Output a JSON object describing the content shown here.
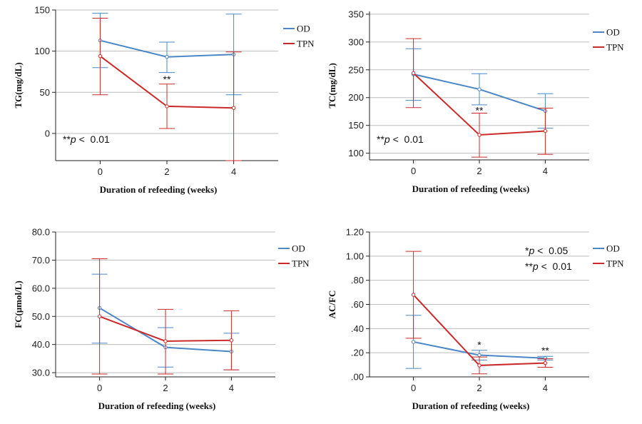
{
  "colors": {
    "OD": "#4a86c8",
    "TPN": "#cc2a2a"
  },
  "chart_data": [
    {
      "type": "line",
      "x": [
        "0",
        "2",
        "4"
      ],
      "xlabel": "Duration of refeeding (weeks)",
      "ylabel": "TG(mg/dL)",
      "ylim": [
        -33,
        150
      ],
      "yticks": [
        0,
        50,
        100,
        150
      ],
      "ytick_labels": [
        "0",
        "50",
        "100",
        "150"
      ],
      "grid": true,
      "legend": [
        "OD",
        "TPN"
      ],
      "legend_position": "top-right",
      "series": [
        {
          "name": "OD",
          "values": [
            113,
            93,
            96
          ],
          "err_low": [
            80,
            74,
            47
          ],
          "err_high": [
            146,
            111,
            145
          ]
        },
        {
          "name": "TPN",
          "values": [
            94,
            33,
            31
          ],
          "err_low": [
            47,
            6,
            -38
          ],
          "err_high": [
            140,
            60,
            99
          ]
        }
      ],
      "significance": [
        {
          "x": "2",
          "y": 66,
          "label": "**"
        }
      ],
      "note": "**p <  0.01"
    },
    {
      "type": "line",
      "x": [
        "0",
        "2",
        "4"
      ],
      "xlabel": "Duration of refeeding (weeks)",
      "ylabel": "TC(mg/dL)",
      "ylim": [
        88,
        355
      ],
      "yticks": [
        100,
        150,
        200,
        250,
        300,
        350
      ],
      "ytick_labels": [
        "100",
        "150",
        "200",
        "250",
        "300",
        "350"
      ],
      "grid": true,
      "legend": [
        "OD",
        "TPN"
      ],
      "legend_position": "top-right",
      "series": [
        {
          "name": "OD",
          "values": [
            242,
            215,
            176
          ],
          "err_low": [
            195,
            187,
            145
          ],
          "err_high": [
            288,
            243,
            207
          ]
        },
        {
          "name": "TPN",
          "values": [
            244,
            133,
            140
          ],
          "err_low": [
            182,
            93,
            98
          ],
          "err_high": [
            306,
            172,
            181
          ]
        }
      ],
      "significance": [
        {
          "x": "2",
          "y": 177,
          "label": "**"
        }
      ],
      "note": "**p <  0.01"
    },
    {
      "type": "line",
      "x": [
        "0",
        "2",
        "4"
      ],
      "xlabel": "Duration of refeeding (weeks)",
      "ylabel": "FC(μmol/L)",
      "ylim": [
        28.5,
        80
      ],
      "yticks": [
        30,
        40,
        50,
        60,
        70,
        80
      ],
      "ytick_labels": [
        "30.0",
        "40.0",
        "50.0",
        "60.0",
        "70.0",
        "80.0"
      ],
      "grid": true,
      "legend": [
        "OD",
        "TPN"
      ],
      "legend_position": "top-right",
      "series": [
        {
          "name": "OD",
          "values": [
            53.0,
            39.0,
            37.5
          ],
          "err_low": [
            40.5,
            32.0,
            31.0
          ],
          "err_high": [
            65.0,
            46.0,
            44.0
          ]
        },
        {
          "name": "TPN",
          "values": [
            50.0,
            41.2,
            41.5
          ],
          "err_low": [
            29.5,
            29.5,
            31.0
          ],
          "err_high": [
            70.5,
            52.5,
            52.0
          ]
        }
      ],
      "significance": []
    },
    {
      "type": "line",
      "x": [
        "0",
        "2",
        "4"
      ],
      "xlabel": "Duration of refeeding (weeks)",
      "ylabel": "AC/FC",
      "ylim": [
        0,
        1.2
      ],
      "yticks": [
        0,
        0.2,
        0.4,
        0.6,
        0.8,
        1.0,
        1.2
      ],
      "ytick_labels": [
        ".00",
        ".20",
        ".40",
        ".60",
        ".80",
        "1.00",
        "1.20"
      ],
      "grid": true,
      "legend": [
        "OD",
        "TPN"
      ],
      "legend_position": "top-right",
      "series": [
        {
          "name": "OD",
          "values": [
            0.29,
            0.18,
            0.155
          ],
          "err_low": [
            0.07,
            0.14,
            0.14
          ],
          "err_high": [
            0.51,
            0.22,
            0.17
          ]
        },
        {
          "name": "TPN",
          "values": [
            0.68,
            0.095,
            0.115
          ],
          "err_low": [
            0.32,
            0.025,
            0.08
          ],
          "err_high": [
            1.04,
            0.165,
            0.15
          ]
        }
      ],
      "significance": [
        {
          "x": "2",
          "y": 0.265,
          "label": "*"
        },
        {
          "x": "4",
          "y": 0.22,
          "label": "**"
        }
      ],
      "note": "*p <  0.05",
      "note2": "**p <  0.01"
    }
  ]
}
